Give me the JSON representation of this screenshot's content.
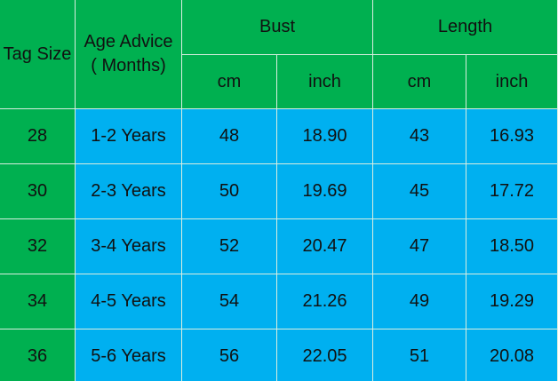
{
  "table": {
    "header": {
      "tag_size": "Tag Size",
      "age_advice": "Age Advice ( Months)",
      "bust": "Bust",
      "length": "Length",
      "units": [
        "cm",
        "inch",
        "cm",
        "inch"
      ]
    },
    "rows": [
      [
        "28",
        "1-2 Years",
        "48",
        "18.90",
        "43",
        "16.93"
      ],
      [
        "30",
        "2-3 Years",
        "50",
        "19.69",
        "45",
        "17.72"
      ],
      [
        "32",
        "3-4 Years",
        "52",
        "20.47",
        "47",
        "18.50"
      ],
      [
        "34",
        "4-5 Years",
        "54",
        "21.26",
        "49",
        "19.29"
      ],
      [
        "36",
        "5-6 Years",
        "56",
        "22.05",
        "51",
        "20.08"
      ]
    ]
  }
}
